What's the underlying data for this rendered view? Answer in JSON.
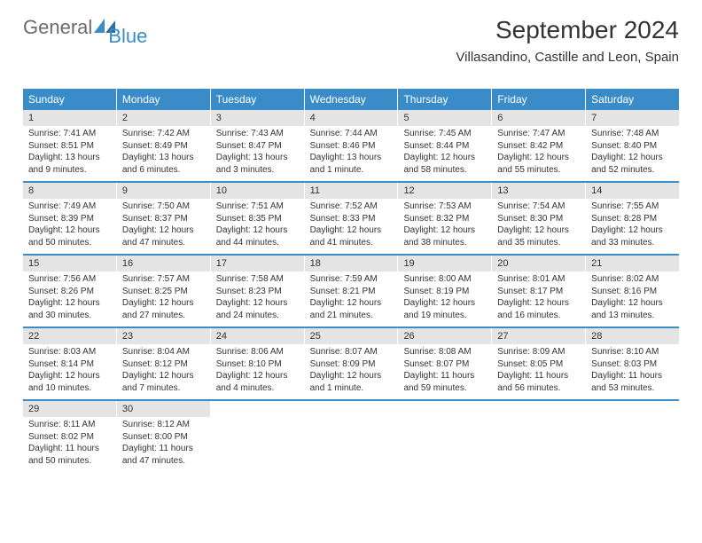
{
  "logo": {
    "text_general": "General",
    "text_blue": "Blue"
  },
  "title": "September 2024",
  "location": "Villasandino, Castille and Leon, Spain",
  "colors": {
    "header_bg": "#3a8cc9",
    "header_text": "#ffffff",
    "daynum_bg": "#e4e4e4",
    "text": "#333333",
    "divider": "#3a8cc9",
    "logo_general": "#6b6b6b",
    "logo_blue": "#3a8cc9"
  },
  "day_headers": [
    "Sunday",
    "Monday",
    "Tuesday",
    "Wednesday",
    "Thursday",
    "Friday",
    "Saturday"
  ],
  "weeks": [
    [
      {
        "num": "1",
        "sunrise": "Sunrise: 7:41 AM",
        "sunset": "Sunset: 8:51 PM",
        "daylight": "Daylight: 13 hours and 9 minutes."
      },
      {
        "num": "2",
        "sunrise": "Sunrise: 7:42 AM",
        "sunset": "Sunset: 8:49 PM",
        "daylight": "Daylight: 13 hours and 6 minutes."
      },
      {
        "num": "3",
        "sunrise": "Sunrise: 7:43 AM",
        "sunset": "Sunset: 8:47 PM",
        "daylight": "Daylight: 13 hours and 3 minutes."
      },
      {
        "num": "4",
        "sunrise": "Sunrise: 7:44 AM",
        "sunset": "Sunset: 8:46 PM",
        "daylight": "Daylight: 13 hours and 1 minute."
      },
      {
        "num": "5",
        "sunrise": "Sunrise: 7:45 AM",
        "sunset": "Sunset: 8:44 PM",
        "daylight": "Daylight: 12 hours and 58 minutes."
      },
      {
        "num": "6",
        "sunrise": "Sunrise: 7:47 AM",
        "sunset": "Sunset: 8:42 PM",
        "daylight": "Daylight: 12 hours and 55 minutes."
      },
      {
        "num": "7",
        "sunrise": "Sunrise: 7:48 AM",
        "sunset": "Sunset: 8:40 PM",
        "daylight": "Daylight: 12 hours and 52 minutes."
      }
    ],
    [
      {
        "num": "8",
        "sunrise": "Sunrise: 7:49 AM",
        "sunset": "Sunset: 8:39 PM",
        "daylight": "Daylight: 12 hours and 50 minutes."
      },
      {
        "num": "9",
        "sunrise": "Sunrise: 7:50 AM",
        "sunset": "Sunset: 8:37 PM",
        "daylight": "Daylight: 12 hours and 47 minutes."
      },
      {
        "num": "10",
        "sunrise": "Sunrise: 7:51 AM",
        "sunset": "Sunset: 8:35 PM",
        "daylight": "Daylight: 12 hours and 44 minutes."
      },
      {
        "num": "11",
        "sunrise": "Sunrise: 7:52 AM",
        "sunset": "Sunset: 8:33 PM",
        "daylight": "Daylight: 12 hours and 41 minutes."
      },
      {
        "num": "12",
        "sunrise": "Sunrise: 7:53 AM",
        "sunset": "Sunset: 8:32 PM",
        "daylight": "Daylight: 12 hours and 38 minutes."
      },
      {
        "num": "13",
        "sunrise": "Sunrise: 7:54 AM",
        "sunset": "Sunset: 8:30 PM",
        "daylight": "Daylight: 12 hours and 35 minutes."
      },
      {
        "num": "14",
        "sunrise": "Sunrise: 7:55 AM",
        "sunset": "Sunset: 8:28 PM",
        "daylight": "Daylight: 12 hours and 33 minutes."
      }
    ],
    [
      {
        "num": "15",
        "sunrise": "Sunrise: 7:56 AM",
        "sunset": "Sunset: 8:26 PM",
        "daylight": "Daylight: 12 hours and 30 minutes."
      },
      {
        "num": "16",
        "sunrise": "Sunrise: 7:57 AM",
        "sunset": "Sunset: 8:25 PM",
        "daylight": "Daylight: 12 hours and 27 minutes."
      },
      {
        "num": "17",
        "sunrise": "Sunrise: 7:58 AM",
        "sunset": "Sunset: 8:23 PM",
        "daylight": "Daylight: 12 hours and 24 minutes."
      },
      {
        "num": "18",
        "sunrise": "Sunrise: 7:59 AM",
        "sunset": "Sunset: 8:21 PM",
        "daylight": "Daylight: 12 hours and 21 minutes."
      },
      {
        "num": "19",
        "sunrise": "Sunrise: 8:00 AM",
        "sunset": "Sunset: 8:19 PM",
        "daylight": "Daylight: 12 hours and 19 minutes."
      },
      {
        "num": "20",
        "sunrise": "Sunrise: 8:01 AM",
        "sunset": "Sunset: 8:17 PM",
        "daylight": "Daylight: 12 hours and 16 minutes."
      },
      {
        "num": "21",
        "sunrise": "Sunrise: 8:02 AM",
        "sunset": "Sunset: 8:16 PM",
        "daylight": "Daylight: 12 hours and 13 minutes."
      }
    ],
    [
      {
        "num": "22",
        "sunrise": "Sunrise: 8:03 AM",
        "sunset": "Sunset: 8:14 PM",
        "daylight": "Daylight: 12 hours and 10 minutes."
      },
      {
        "num": "23",
        "sunrise": "Sunrise: 8:04 AM",
        "sunset": "Sunset: 8:12 PM",
        "daylight": "Daylight: 12 hours and 7 minutes."
      },
      {
        "num": "24",
        "sunrise": "Sunrise: 8:06 AM",
        "sunset": "Sunset: 8:10 PM",
        "daylight": "Daylight: 12 hours and 4 minutes."
      },
      {
        "num": "25",
        "sunrise": "Sunrise: 8:07 AM",
        "sunset": "Sunset: 8:09 PM",
        "daylight": "Daylight: 12 hours and 1 minute."
      },
      {
        "num": "26",
        "sunrise": "Sunrise: 8:08 AM",
        "sunset": "Sunset: 8:07 PM",
        "daylight": "Daylight: 11 hours and 59 minutes."
      },
      {
        "num": "27",
        "sunrise": "Sunrise: 8:09 AM",
        "sunset": "Sunset: 8:05 PM",
        "daylight": "Daylight: 11 hours and 56 minutes."
      },
      {
        "num": "28",
        "sunrise": "Sunrise: 8:10 AM",
        "sunset": "Sunset: 8:03 PM",
        "daylight": "Daylight: 11 hours and 53 minutes."
      }
    ],
    [
      {
        "num": "29",
        "sunrise": "Sunrise: 8:11 AM",
        "sunset": "Sunset: 8:02 PM",
        "daylight": "Daylight: 11 hours and 50 minutes."
      },
      {
        "num": "30",
        "sunrise": "Sunrise: 8:12 AM",
        "sunset": "Sunset: 8:00 PM",
        "daylight": "Daylight: 11 hours and 47 minutes."
      },
      null,
      null,
      null,
      null,
      null
    ]
  ]
}
